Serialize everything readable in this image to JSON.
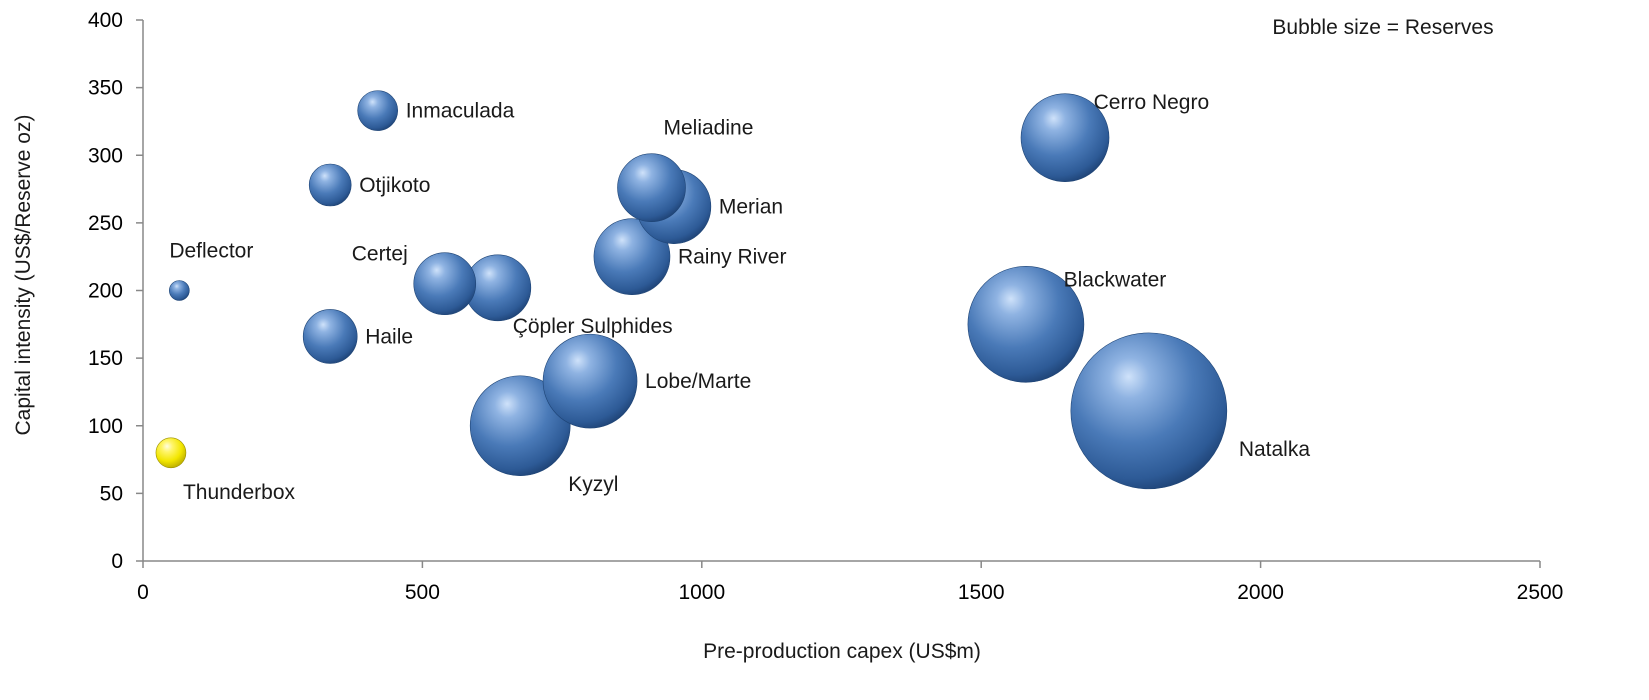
{
  "chart_data": {
    "type": "scatter",
    "subtype": "bubble",
    "title": "",
    "xlabel": "Pre-production capex (US$m)",
    "ylabel": "Capital intensity (US$/Reserve oz)",
    "note": "Bubble size = Reserves",
    "xlim": [
      0,
      2500
    ],
    "ylim": [
      0,
      400
    ],
    "xticks": [
      0,
      500,
      1000,
      1500,
      2000,
      2500
    ],
    "yticks": [
      0,
      50,
      100,
      150,
      200,
      250,
      300,
      350,
      400
    ],
    "grid": false,
    "legend": "none",
    "colors": {
      "default": "#4a7ab8",
      "highlight": "#f2e600"
    },
    "points": [
      {
        "name": "Inmaculada",
        "x": 420,
        "y": 333,
        "size": 20,
        "color": "default",
        "label_pos": "right"
      },
      {
        "name": "Otjikoto",
        "x": 335,
        "y": 278,
        "size": 21,
        "color": "default",
        "label_pos": "right"
      },
      {
        "name": "Deflector",
        "x": 65,
        "y": 200,
        "size": 10,
        "color": "default",
        "label_pos": "above"
      },
      {
        "name": "Certej",
        "x": 540,
        "y": 205,
        "size": 31,
        "color": "default",
        "label_pos": "above-left"
      },
      {
        "name": "Çöpler Sulphides",
        "x": 635,
        "y": 202,
        "size": 33,
        "color": "default",
        "label_pos": "below-right"
      },
      {
        "name": "Haile",
        "x": 335,
        "y": 166,
        "size": 27,
        "color": "default",
        "label_pos": "right"
      },
      {
        "name": "Thunderbox",
        "x": 50,
        "y": 80,
        "size": 15,
        "color": "highlight",
        "label_pos": "below"
      },
      {
        "name": "Meliadine",
        "x": 910,
        "y": 276,
        "size": 34,
        "color": "default",
        "label_pos": "above"
      },
      {
        "name": "Merian",
        "x": 950,
        "y": 262,
        "size": 37,
        "color": "default",
        "label_pos": "right"
      },
      {
        "name": "Rainy River",
        "x": 875,
        "y": 225,
        "size": 38,
        "color": "default",
        "label_pos": "right"
      },
      {
        "name": "Lobe/Marte",
        "x": 800,
        "y": 133,
        "size": 47,
        "color": "default",
        "label_pos": "right"
      },
      {
        "name": "Kyzyl",
        "x": 675,
        "y": 100,
        "size": 50,
        "color": "default",
        "label_pos": "below"
      },
      {
        "name": "Cerro Negro",
        "x": 1650,
        "y": 313,
        "size": 44,
        "color": "default",
        "label_pos": "above-right"
      },
      {
        "name": "Blackwater",
        "x": 1580,
        "y": 175,
        "size": 58,
        "color": "default",
        "label_pos": "above-right"
      },
      {
        "name": "Natalka",
        "x": 1800,
        "y": 111,
        "size": 78,
        "color": "default",
        "label_pos": "right"
      }
    ]
  }
}
